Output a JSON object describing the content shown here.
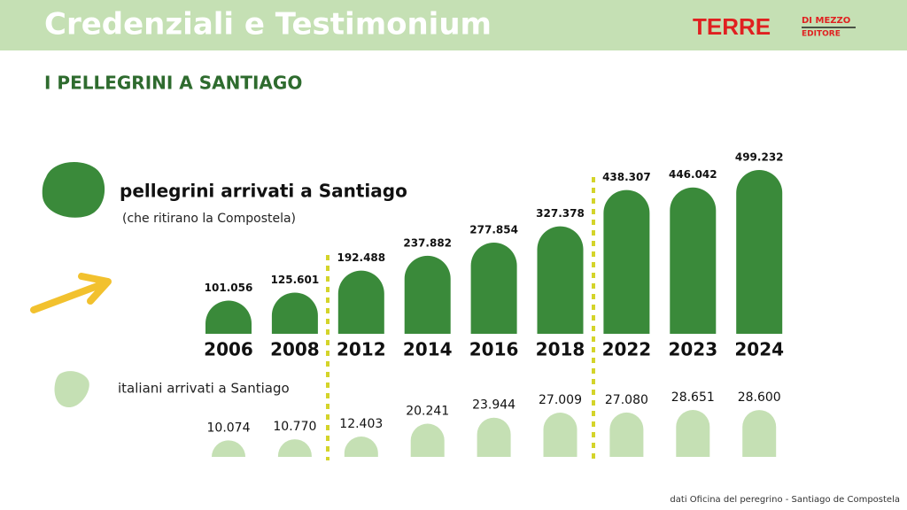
{
  "header": {
    "title": "Credenziali e Testimonium",
    "logo": "TERRE",
    "logo_top": "DI MEZZO",
    "logo_bottom": "EDITORE"
  },
  "chart_data": {
    "type": "bar",
    "title": "I PELLEGRINI A SANTIAGO",
    "categories": [
      "2006",
      "2008",
      "2012",
      "2014",
      "2016",
      "2018",
      "2022",
      "2023",
      "2024"
    ],
    "series": [
      {
        "name": "pellegrini arrivati a Santiago",
        "note": "(che ritirano la Compostela)",
        "color": "#3a8a3a",
        "values": [
          101056,
          125601,
          192488,
          237882,
          277854,
          327378,
          438307,
          446042,
          499232
        ],
        "value_labels": [
          "101.056",
          "125.601",
          "192.488",
          "237.882",
          "277.854",
          "327.378",
          "438.307",
          "446.042",
          "499.232"
        ]
      },
      {
        "name": "italiani arrivati a Santiago",
        "color": "#c5e0b4",
        "values": [
          10074,
          10770,
          12403,
          20241,
          23944,
          27009,
          27080,
          28651,
          28600
        ],
        "value_labels": [
          "10.074",
          "10.770",
          "12.403",
          "20.241",
          "23.944",
          "27.009",
          "27.080",
          "28.651",
          "28.600"
        ]
      }
    ]
  },
  "source": "dati Oficina del peregrino - Santiago de Compostela"
}
